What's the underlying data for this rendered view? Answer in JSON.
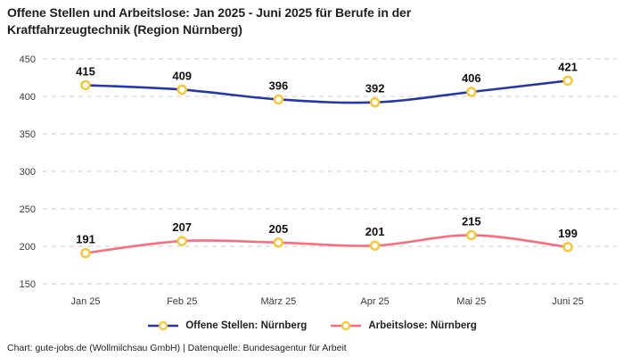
{
  "title": "Offene Stellen und Arbeitslose: Jan 2025 - Juni 2025 für Berufe in der Kraftfahrzeugtechnik (Region Nürnberg)",
  "footer": "Chart: gute-jobs.de (Wollmilchsau GmbH) | Datenquelle: Bundesagentur für Arbeit",
  "colors": {
    "open_positions_line": "#2737a3",
    "unemployed_line": "#f96d7f",
    "marker_ring": "#fbc531",
    "grid_line": "#cdcdcd",
    "title_text": "#1f1f1f",
    "data_label_text": "#111111"
  },
  "chart_data": {
    "type": "line",
    "title": "Offene Stellen und Arbeitslose: Jan 2025 - Juni 2025 für Berufe in der Kraftfahrzeugtechnik (Region Nürnberg)",
    "categories": [
      "Jan 25",
      "Feb 25",
      "März 25",
      "Apr 25",
      "Mai 25",
      "Juni 25"
    ],
    "series": [
      {
        "name": "Offene Stellen: Nürnberg",
        "values": [
          415,
          409,
          396,
          392,
          406,
          421
        ],
        "color": "#2737a3"
      },
      {
        "name": "Arbeitslose: Nürnberg",
        "values": [
          191,
          207,
          205,
          201,
          215,
          199
        ],
        "color": "#f96d7f"
      }
    ],
    "marker_color": "#fbc531",
    "xlabel": "",
    "ylabel": "",
    "ylim": [
      150,
      450
    ],
    "yticks": [
      150,
      200,
      250,
      300,
      350,
      400,
      450
    ],
    "grid": "horizontal-dashed",
    "legend_position": "bottom",
    "data_labels": true
  }
}
